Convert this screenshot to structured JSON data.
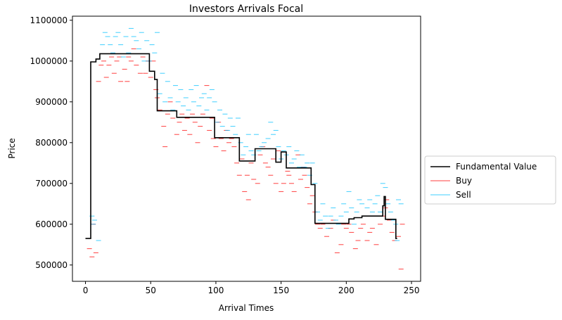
{
  "chart_data": {
    "type": "line",
    "title": "Investors Arrivals Focal",
    "xlabel": "Arrival Times",
    "ylabel": "Price",
    "xlim": [
      -10,
      257
    ],
    "ylim": [
      460000,
      1110000
    ],
    "xticks": [
      0,
      50,
      100,
      150,
      200,
      250
    ],
    "yticks": [
      500000,
      600000,
      700000,
      800000,
      900000,
      1000000,
      1100000
    ],
    "legend_position": "outside-right",
    "colors": {
      "fundamental": "#000000",
      "buy": "#ff0000",
      "sell": "#00bfff"
    },
    "series": [
      {
        "name": "Fundamental Value",
        "style": "step",
        "points": [
          [
            0,
            565000
          ],
          [
            4,
            565000
          ],
          [
            4,
            998000
          ],
          [
            8,
            998000
          ],
          [
            8,
            1005000
          ],
          [
            11,
            1005000
          ],
          [
            11,
            1018000
          ],
          [
            49,
            1018000
          ],
          [
            49,
            975000
          ],
          [
            53,
            975000
          ],
          [
            53,
            955000
          ],
          [
            55,
            955000
          ],
          [
            55,
            878000
          ],
          [
            70,
            878000
          ],
          [
            70,
            862000
          ],
          [
            99,
            862000
          ],
          [
            99,
            812000
          ],
          [
            118,
            812000
          ],
          [
            118,
            755000
          ],
          [
            130,
            755000
          ],
          [
            130,
            785000
          ],
          [
            146,
            785000
          ],
          [
            146,
            752000
          ],
          [
            150,
            752000
          ],
          [
            150,
            777000
          ],
          [
            154,
            777000
          ],
          [
            154,
            738000
          ],
          [
            173,
            738000
          ],
          [
            173,
            697000
          ],
          [
            176,
            697000
          ],
          [
            176,
            602000
          ],
          [
            202,
            602000
          ],
          [
            202,
            613000
          ],
          [
            206,
            613000
          ],
          [
            206,
            616000
          ],
          [
            212,
            616000
          ],
          [
            212,
            620000
          ],
          [
            228,
            620000
          ],
          [
            228,
            645000
          ],
          [
            229,
            645000
          ],
          [
            229,
            668000
          ],
          [
            230,
            668000
          ],
          [
            230,
            612000
          ],
          [
            238,
            612000
          ],
          [
            238,
            565000
          ],
          [
            239,
            565000
          ]
        ]
      },
      {
        "name": "Buy",
        "style": "dash-marker",
        "points": [
          [
            3,
            540000
          ],
          [
            5,
            520000
          ],
          [
            8,
            530000
          ],
          [
            6,
            600000
          ],
          [
            10,
            950000
          ],
          [
            12,
            990000
          ],
          [
            14,
            1000000
          ],
          [
            16,
            960000
          ],
          [
            18,
            990000
          ],
          [
            20,
            1010000
          ],
          [
            22,
            970000
          ],
          [
            24,
            1000000
          ],
          [
            26,
            1010000
          ],
          [
            27,
            950000
          ],
          [
            30,
            980000
          ],
          [
            32,
            950000
          ],
          [
            33,
            1010000
          ],
          [
            35,
            1000000
          ],
          [
            37,
            1030000
          ],
          [
            39,
            990000
          ],
          [
            42,
            970000
          ],
          [
            44,
            1010000
          ],
          [
            46,
            970000
          ],
          [
            48,
            1000000
          ],
          [
            50,
            960000
          ],
          [
            52,
            1000000
          ],
          [
            54,
            930000
          ],
          [
            55,
            910000
          ],
          [
            57,
            880000
          ],
          [
            60,
            840000
          ],
          [
            61,
            790000
          ],
          [
            63,
            870000
          ],
          [
            65,
            900000
          ],
          [
            67,
            860000
          ],
          [
            70,
            820000
          ],
          [
            72,
            850000
          ],
          [
            74,
            870000
          ],
          [
            76,
            830000
          ],
          [
            78,
            860000
          ],
          [
            80,
            820000
          ],
          [
            82,
            870000
          ],
          [
            84,
            850000
          ],
          [
            86,
            800000
          ],
          [
            88,
            840000
          ],
          [
            90,
            870000
          ],
          [
            93,
            940000
          ],
          [
            95,
            830000
          ],
          [
            97,
            860000
          ],
          [
            98,
            810000
          ],
          [
            100,
            790000
          ],
          [
            102,
            850000
          ],
          [
            104,
            810000
          ],
          [
            106,
            780000
          ],
          [
            108,
            830000
          ],
          [
            110,
            800000
          ],
          [
            112,
            810000
          ],
          [
            114,
            790000
          ],
          [
            116,
            750000
          ],
          [
            118,
            720000
          ],
          [
            120,
            760000
          ],
          [
            122,
            680000
          ],
          [
            124,
            720000
          ],
          [
            125,
            660000
          ],
          [
            127,
            750000
          ],
          [
            129,
            710000
          ],
          [
            132,
            700000
          ],
          [
            134,
            770000
          ],
          [
            136,
            790000
          ],
          [
            138,
            750000
          ],
          [
            140,
            740000
          ],
          [
            142,
            720000
          ],
          [
            144,
            760000
          ],
          [
            146,
            700000
          ],
          [
            148,
            780000
          ],
          [
            150,
            680000
          ],
          [
            152,
            700000
          ],
          [
            155,
            730000
          ],
          [
            156,
            720000
          ],
          [
            158,
            700000
          ],
          [
            160,
            680000
          ],
          [
            163,
            770000
          ],
          [
            165,
            710000
          ],
          [
            167,
            740000
          ],
          [
            168,
            720000
          ],
          [
            170,
            690000
          ],
          [
            172,
            650000
          ],
          [
            174,
            670000
          ],
          [
            176,
            630000
          ],
          [
            178,
            600000
          ],
          [
            180,
            590000
          ],
          [
            182,
            600000
          ],
          [
            185,
            570000
          ],
          [
            188,
            590000
          ],
          [
            190,
            610000
          ],
          [
            193,
            530000
          ],
          [
            196,
            550000
          ],
          [
            198,
            600000
          ],
          [
            200,
            590000
          ],
          [
            202,
            600000
          ],
          [
            204,
            580000
          ],
          [
            207,
            540000
          ],
          [
            209,
            560000
          ],
          [
            211,
            590000
          ],
          [
            213,
            600000
          ],
          [
            216,
            560000
          ],
          [
            218,
            580000
          ],
          [
            220,
            590000
          ],
          [
            223,
            550000
          ],
          [
            226,
            600000
          ],
          [
            228,
            620000
          ],
          [
            230,
            640000
          ],
          [
            231,
            660000
          ],
          [
            233,
            610000
          ],
          [
            235,
            580000
          ],
          [
            237,
            560000
          ],
          [
            240,
            570000
          ],
          [
            242,
            490000
          ],
          [
            243,
            600000
          ]
        ]
      },
      {
        "name": "Sell",
        "style": "dash-marker",
        "points": [
          [
            5,
            620000
          ],
          [
            7,
            610000
          ],
          [
            10,
            560000
          ],
          [
            6,
            600000
          ],
          [
            13,
            1040000
          ],
          [
            15,
            1070000
          ],
          [
            17,
            1060000
          ],
          [
            19,
            1040000
          ],
          [
            21,
            1020000
          ],
          [
            23,
            1060000
          ],
          [
            25,
            1070000
          ],
          [
            27,
            1040000
          ],
          [
            29,
            1010000
          ],
          [
            31,
            1060000
          ],
          [
            33,
            1020000
          ],
          [
            35,
            1080000
          ],
          [
            37,
            1060000
          ],
          [
            39,
            1050000
          ],
          [
            41,
            1030000
          ],
          [
            43,
            1070000
          ],
          [
            45,
            1000000
          ],
          [
            47,
            1050000
          ],
          [
            49,
            1000000
          ],
          [
            51,
            1040000
          ],
          [
            53,
            1020000
          ],
          [
            55,
            1070000
          ],
          [
            57,
            920000
          ],
          [
            59,
            970000
          ],
          [
            61,
            900000
          ],
          [
            63,
            950000
          ],
          [
            65,
            910000
          ],
          [
            67,
            880000
          ],
          [
            69,
            940000
          ],
          [
            71,
            900000
          ],
          [
            73,
            930000
          ],
          [
            75,
            890000
          ],
          [
            77,
            910000
          ],
          [
            79,
            880000
          ],
          [
            81,
            930000
          ],
          [
            83,
            900000
          ],
          [
            85,
            940000
          ],
          [
            87,
            890000
          ],
          [
            89,
            910000
          ],
          [
            91,
            920000
          ],
          [
            93,
            880000
          ],
          [
            95,
            910000
          ],
          [
            97,
            930000
          ],
          [
            99,
            900000
          ],
          [
            101,
            850000
          ],
          [
            103,
            880000
          ],
          [
            105,
            840000
          ],
          [
            107,
            870000
          ],
          [
            109,
            830000
          ],
          [
            111,
            860000
          ],
          [
            113,
            840000
          ],
          [
            115,
            820000
          ],
          [
            117,
            860000
          ],
          [
            119,
            800000
          ],
          [
            121,
            770000
          ],
          [
            123,
            790000
          ],
          [
            125,
            820000
          ],
          [
            127,
            780000
          ],
          [
            129,
            770000
          ],
          [
            131,
            820000
          ],
          [
            133,
            780000
          ],
          [
            135,
            790000
          ],
          [
            137,
            800000
          ],
          [
            140,
            810000
          ],
          [
            142,
            850000
          ],
          [
            144,
            820000
          ],
          [
            146,
            830000
          ],
          [
            148,
            790000
          ],
          [
            150,
            760000
          ],
          [
            152,
            780000
          ],
          [
            154,
            770000
          ],
          [
            156,
            790000
          ],
          [
            158,
            750000
          ],
          [
            160,
            760000
          ],
          [
            162,
            780000
          ],
          [
            164,
            740000
          ],
          [
            166,
            770000
          ],
          [
            168,
            740000
          ],
          [
            170,
            750000
          ],
          [
            172,
            720000
          ],
          [
            174,
            750000
          ],
          [
            176,
            700000
          ],
          [
            178,
            630000
          ],
          [
            180,
            610000
          ],
          [
            182,
            650000
          ],
          [
            184,
            620000
          ],
          [
            186,
            590000
          ],
          [
            188,
            620000
          ],
          [
            190,
            640000
          ],
          [
            192,
            610000
          ],
          [
            194,
            600000
          ],
          [
            196,
            620000
          ],
          [
            198,
            650000
          ],
          [
            200,
            630000
          ],
          [
            202,
            680000
          ],
          [
            204,
            640000
          ],
          [
            206,
            600000
          ],
          [
            208,
            630000
          ],
          [
            210,
            660000
          ],
          [
            212,
            650000
          ],
          [
            214,
            620000
          ],
          [
            216,
            640000
          ],
          [
            218,
            660000
          ],
          [
            220,
            630000
          ],
          [
            222,
            650000
          ],
          [
            224,
            670000
          ],
          [
            226,
            630000
          ],
          [
            228,
            700000
          ],
          [
            230,
            690000
          ],
          [
            232,
            650000
          ],
          [
            234,
            630000
          ],
          [
            236,
            610000
          ],
          [
            238,
            600000
          ],
          [
            240,
            660000
          ],
          [
            242,
            650000
          ],
          [
            239,
            560000
          ]
        ]
      }
    ]
  }
}
